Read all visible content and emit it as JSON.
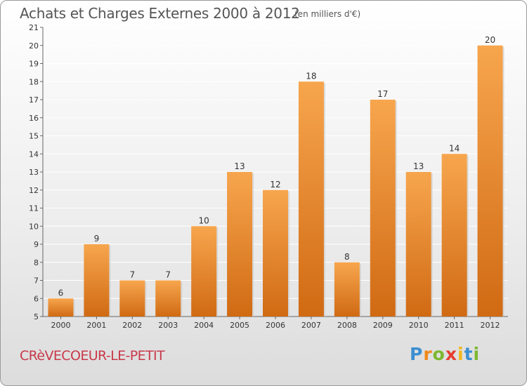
{
  "title": "Achats et Charges Externes 2000 à 2012",
  "unit_note": "(en milliers d'€)",
  "commune": "CRèVECOEUR-LE-PETIT",
  "brand": {
    "letters": [
      "P",
      "r",
      "o",
      "x",
      "i",
      "t",
      "i"
    ],
    "colors": [
      "#3c8fd0",
      "#f08a1c",
      "#7cb82f",
      "#e63d2e",
      "#f2b81b",
      "#3c8fd0",
      "#7cb82f"
    ]
  },
  "colors": {
    "bar_light": "#f7a64e",
    "bar_dark": "#d06a13",
    "grid": "#ffffff",
    "axis_text": "#333333"
  },
  "chart_data": {
    "type": "bar",
    "categories": [
      "2000",
      "2001",
      "2002",
      "2003",
      "2004",
      "2005",
      "2006",
      "2007",
      "2008",
      "2009",
      "2010",
      "2011",
      "2012"
    ],
    "values": [
      6,
      9,
      7,
      7,
      10,
      13,
      12,
      18,
      8,
      17,
      13,
      14,
      20
    ],
    "ylim": [
      5,
      21
    ],
    "yticks": [
      5,
      6,
      7,
      8,
      9,
      10,
      11,
      12,
      13,
      14,
      15,
      16,
      17,
      18,
      19,
      20,
      21
    ],
    "grid": true
  }
}
